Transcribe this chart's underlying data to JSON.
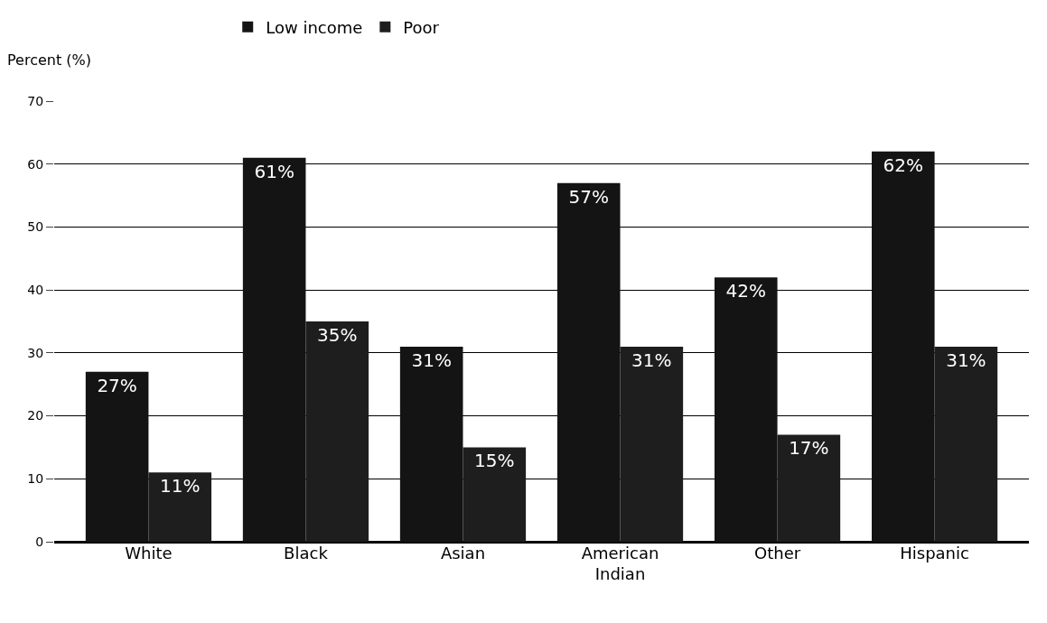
{
  "chart_data": {
    "type": "bar",
    "ylabel": "Percent (%)",
    "categories": [
      "White",
      "Black",
      "Asian",
      "American Indian",
      "Other",
      "Hispanic"
    ],
    "series": [
      {
        "name": "Low income",
        "color": "#141414",
        "values": [
          27,
          61,
          31,
          57,
          42,
          62
        ],
        "value_labels": [
          "27%",
          "61%",
          "31%",
          "57%",
          "42%",
          "62%"
        ]
      },
      {
        "name": "Poor",
        "color": "#1e1e1e",
        "values": [
          11,
          35,
          15,
          31,
          17,
          31
        ],
        "value_labels": [
          "11%",
          "35%",
          "15%",
          "31%",
          "17%",
          "31%"
        ]
      }
    ],
    "ylim": [
      0,
      70
    ],
    "yticks": [
      0,
      10,
      20,
      30,
      40,
      50,
      60,
      70
    ],
    "grid": "y",
    "legend": "top"
  }
}
